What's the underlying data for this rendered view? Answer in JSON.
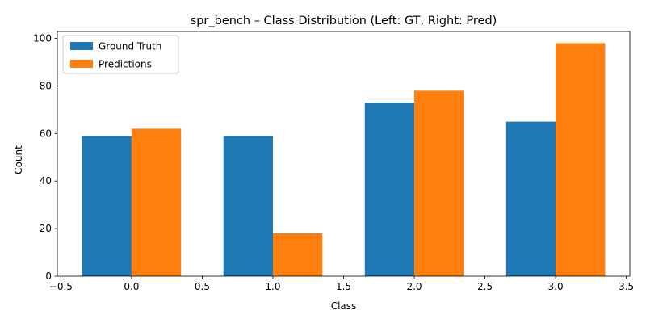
{
  "chart_data": {
    "type": "bar",
    "title": "spr_bench – Class Distribution (Left: GT, Right: Pred)",
    "xlabel": "Class",
    "ylabel": "Count",
    "x": [
      0,
      1,
      2,
      3
    ],
    "series": [
      {
        "name": "Ground Truth",
        "color": "#1f77b4",
        "values": [
          59,
          59,
          73,
          65
        ]
      },
      {
        "name": "Predictions",
        "color": "#ff7f0e",
        "values": [
          62,
          18,
          78,
          98
        ]
      }
    ],
    "bar_width": 0.35,
    "xlim": [
      -0.525,
      3.525
    ],
    "ylim": [
      0,
      102.9
    ],
    "xticks": [
      -0.5,
      0.0,
      0.5,
      1.0,
      1.5,
      2.0,
      2.5,
      3.0,
      3.5
    ],
    "xtick_labels": [
      "−0.5",
      "0.0",
      "0.5",
      "1.0",
      "1.5",
      "2.0",
      "2.5",
      "3.0",
      "3.5"
    ],
    "yticks": [
      0,
      20,
      40,
      60,
      80,
      100
    ],
    "ytick_labels": [
      "0",
      "20",
      "40",
      "60",
      "80",
      "100"
    ],
    "grid": false,
    "legend_position": "top-left"
  }
}
